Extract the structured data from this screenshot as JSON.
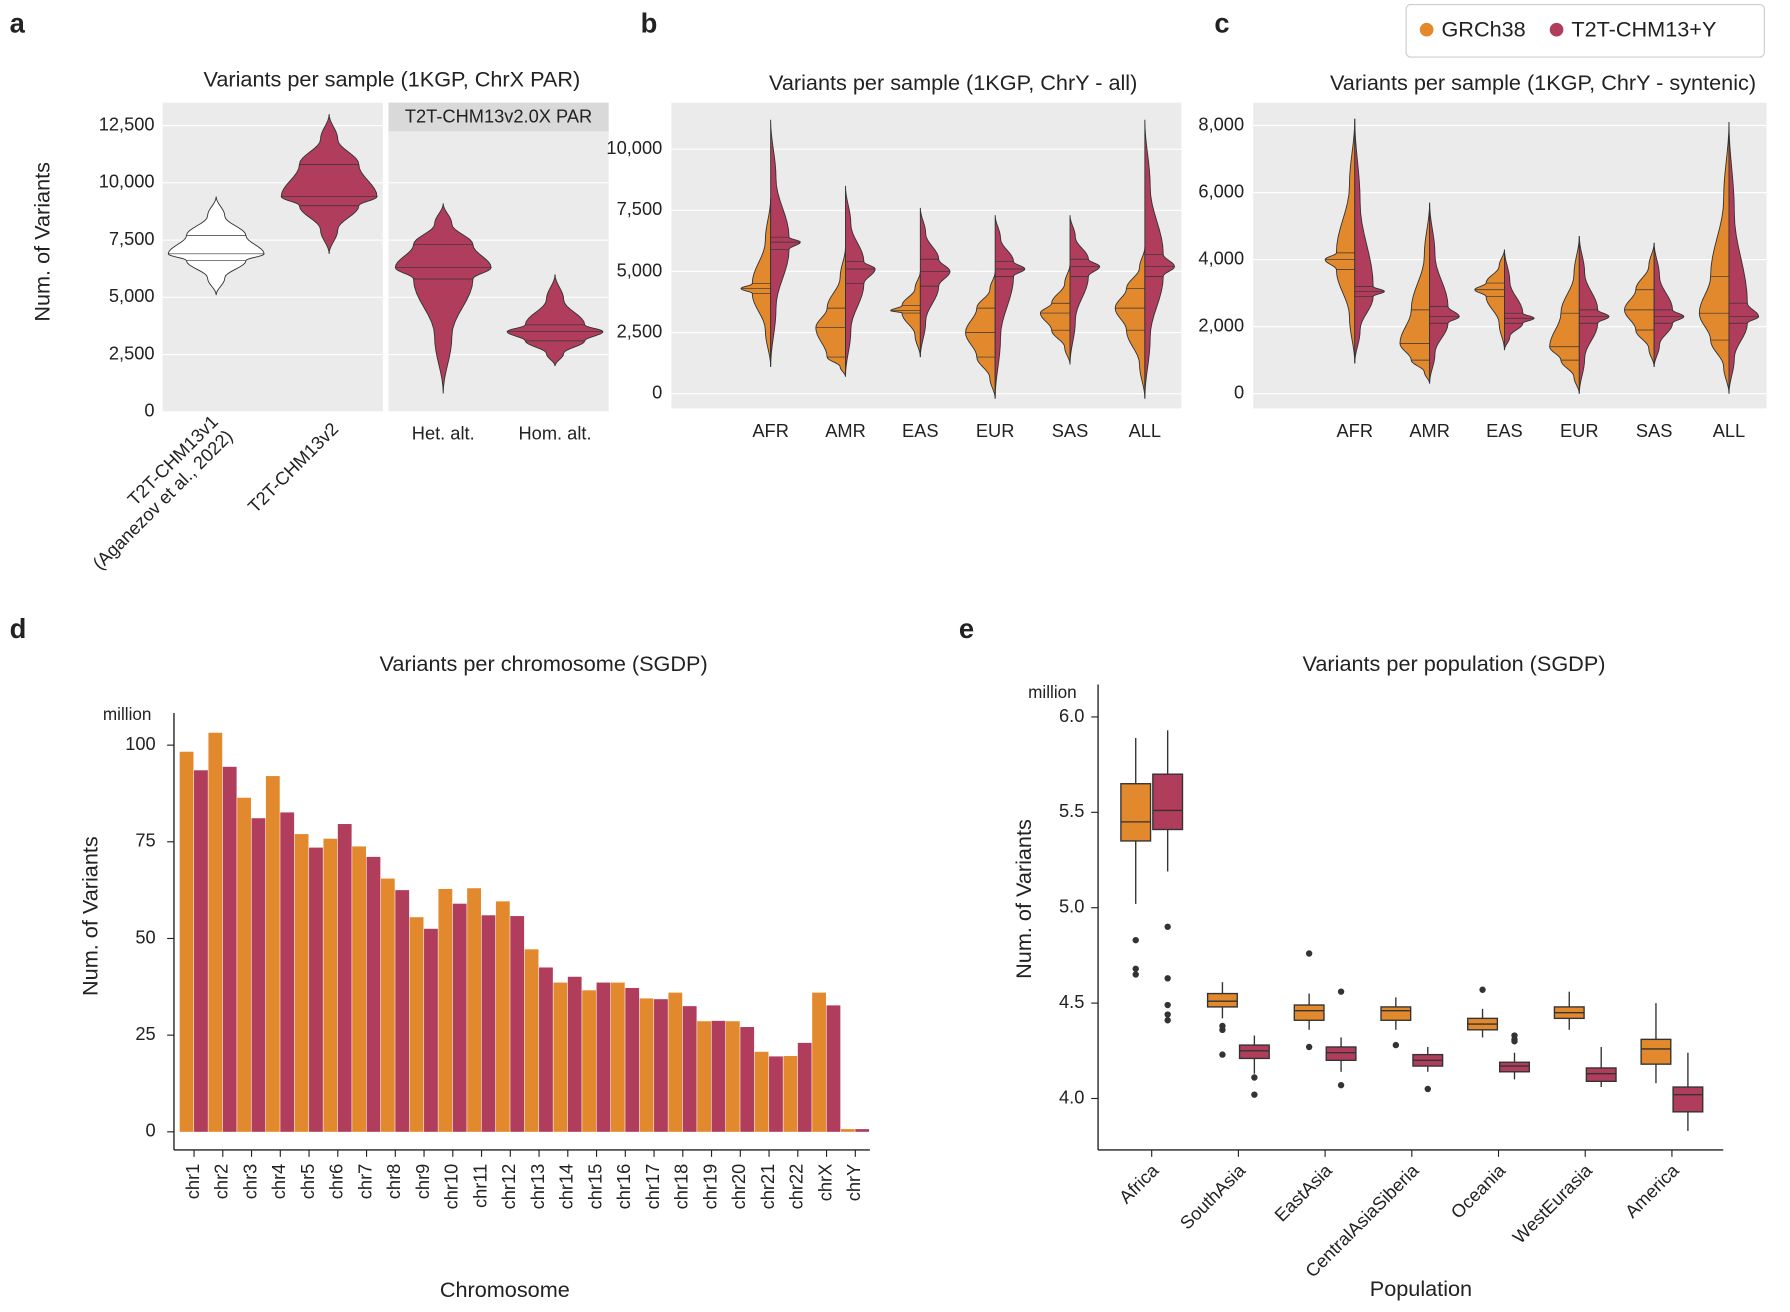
{
  "chart_data": [
    {
      "type": "violin",
      "panel_label": "a",
      "title": "Variants per sample (1KGP, ChrX PAR)",
      "y_label": "Num. of Variants",
      "strip_label": "T2T-CHM13v2.0X PAR",
      "categories": [
        [
          "T2T-CHM13v1",
          "(Aganezov et al., 2022)"
        ],
        "T2T-CHM13v2",
        "Het. alt.",
        "Hom. alt."
      ],
      "colors": [
        "#ffffff",
        "#b13d5c",
        "#b13d5c",
        "#b13d5c"
      ],
      "values": [
        [
          5100,
          6600,
          6900,
          7700,
          9400
        ],
        [
          6900,
          9000,
          9400,
          10800,
          13000
        ],
        [
          800,
          5800,
          6300,
          7300,
          9100
        ],
        [
          2000,
          3100,
          3500,
          3800,
          6000
        ]
      ],
      "ylim": [
        0,
        13500
      ],
      "yticks": [
        0,
        {
          "value": 2500,
          "label": "2,500"
        },
        {
          "value": 5000,
          "label": "5,000"
        },
        {
          "value": 7500,
          "label": "7,500"
        },
        {
          "value": 10000,
          "label": "10,000"
        },
        {
          "value": 12500,
          "label": "12,500"
        }
      ],
      "grid": true
    },
    {
      "type": "split_violin",
      "panel_label": "b",
      "title": "Variants per sample (1KGP, ChrY - all)",
      "categories": [
        "AFR",
        "AMR",
        "EAS",
        "EUR",
        "SAS",
        "ALL"
      ],
      "series": [
        {
          "name": "GRCh38",
          "color": "#e3892d",
          "values": [
            [
              1100,
              4100,
              4300,
              4500,
              8000
            ],
            [
              700,
              1500,
              2700,
              3500,
              6000
            ],
            [
              1500,
              3300,
              3400,
              3600,
              5000
            ],
            [
              -200,
              1500,
              2500,
              3500,
              5000
            ],
            [
              1200,
              2600,
              3300,
              3700,
              5300
            ],
            [
              -200,
              2600,
              3500,
              4300,
              6000
            ]
          ]
        },
        {
          "name": "T2T-CHM13+Y",
          "color": "#b13d5c",
          "values": [
            [
              1100,
              5900,
              6200,
              6400,
              11200
            ],
            [
              700,
              4500,
              5100,
              5400,
              8500
            ],
            [
              1500,
              4400,
              5000,
              5500,
              7600
            ],
            [
              -200,
              4800,
              5100,
              5400,
              7300
            ],
            [
              1200,
              4800,
              5200,
              5500,
              7300
            ],
            [
              -200,
              4800,
              5200,
              5700,
              11200
            ]
          ]
        }
      ],
      "ylim": [
        -600,
        11900
      ],
      "yticks": [
        0,
        {
          "value": 2500,
          "label": "2,500"
        },
        {
          "value": 5000,
          "label": "5,000"
        },
        {
          "value": 7500,
          "label": "7,500"
        },
        {
          "value": 10000,
          "label": "10,000"
        }
      ],
      "grid": true,
      "legend": "top-right"
    },
    {
      "type": "split_violin",
      "panel_label": "c",
      "title": "Variants per sample (1KGP, ChrY - syntenic)",
      "categories": [
        "AFR",
        "AMR",
        "EAS",
        "EUR",
        "SAS",
        "ALL"
      ],
      "series": [
        {
          "color": "#e3892d",
          "values": [
            [
              900,
              3700,
              4000,
              4200,
              8200
            ],
            [
              300,
              1000,
              1500,
              2500,
              5700
            ],
            [
              1300,
              2900,
              3100,
              3300,
              4300
            ],
            [
              0,
              1000,
              1400,
              2400,
              4700
            ],
            [
              800,
              1900,
              2500,
              3100,
              4500
            ],
            [
              0,
              1600,
              2400,
              3500,
              8100
            ]
          ]
        },
        {
          "color": "#b13d5c",
          "values": [
            [
              900,
              2900,
              3050,
              3200,
              8200
            ],
            [
              300,
              2100,
              2300,
              2600,
              5700
            ],
            [
              1300,
              2100,
              2250,
              2400,
              4300
            ],
            [
              0,
              2100,
              2300,
              2500,
              4700
            ],
            [
              800,
              2100,
              2300,
              2500,
              4500
            ],
            [
              0,
              2100,
              2300,
              2700,
              8100
            ]
          ]
        }
      ],
      "ylim": [
        -440,
        8680
      ],
      "yticks": [
        0,
        {
          "value": 2000,
          "label": "2,000"
        },
        {
          "value": 4000,
          "label": "4,000"
        },
        {
          "value": 6000,
          "label": "6,000"
        },
        {
          "value": 8000,
          "label": "8,000"
        }
      ],
      "grid": true
    },
    {
      "type": "bar",
      "panel_label": "d",
      "title": "Variants per chromosome (SGDP)",
      "unit_label": "million",
      "y_label": "Num. of Variants",
      "x_label": "Chromosome",
      "categories": [
        "chr1",
        "chr2",
        "chr3",
        "chr4",
        "chr5",
        "chr6",
        "chr7",
        "chr8",
        "chr9",
        "chr10",
        "chr11",
        "chr12",
        "chr13",
        "chr14",
        "chr15",
        "chr16",
        "chr17",
        "chr18",
        "chr19",
        "chr20",
        "chr21",
        "chr22",
        "chrX",
        "chrY"
      ],
      "series": [
        {
          "color": "#e3892d",
          "values": [
            98.3,
            103.2,
            86.4,
            92,
            77,
            75.8,
            73.8,
            65.5,
            55.5,
            62.8,
            63,
            59.6,
            47.2,
            38.6,
            36.6,
            38.6,
            34.5,
            36,
            28.6,
            28.6,
            20.7,
            19.6,
            36,
            0.7
          ]
        },
        {
          "color": "#b13d5c",
          "values": [
            93.5,
            94.4,
            81.1,
            82.6,
            73.5,
            79.6,
            71.1,
            62.5,
            52.5,
            59,
            56,
            55.8,
            42.5,
            40.1,
            38.6,
            37.2,
            34.3,
            32.5,
            28.7,
            27.1,
            19.5,
            23,
            32.7,
            0.7
          ]
        }
      ],
      "ylim": [
        -4.7,
        108.3
      ],
      "yticks": [
        0,
        25,
        50,
        75,
        100
      ]
    },
    {
      "type": "box",
      "panel_label": "e",
      "title": "Variants per population (SGDP)",
      "unit_label": "million",
      "y_label": "Num. of Variants",
      "x_label": "Population",
      "categories": [
        "Africa",
        "SouthAsia",
        "EastAsia",
        "CentralAsiaSiberia",
        "Oceania",
        "WestEurasia",
        "America"
      ],
      "series": [
        {
          "color": "#e3892d",
          "values": [
            [
              5.02,
              5.35,
              5.45,
              5.65,
              5.89
            ],
            [
              4.42,
              4.48,
              4.51,
              4.55,
              4.61
            ],
            [
              4.36,
              4.41,
              4.46,
              4.49,
              4.55
            ],
            [
              4.36,
              4.41,
              4.46,
              4.48,
              4.53
            ],
            [
              4.32,
              4.36,
              4.39,
              4.42,
              4.47
            ],
            [
              4.36,
              4.42,
              4.45,
              4.48,
              4.56
            ],
            [
              4.08,
              4.18,
              4.26,
              4.31,
              4.5
            ]
          ],
          "outliers": [
            [
              4.83,
              4.68,
              4.65
            ],
            [
              4.38,
              4.36,
              4.23
            ],
            [
              4.76,
              4.27
            ],
            [
              4.28
            ],
            [
              4.57
            ],
            [],
            []
          ]
        },
        {
          "color": "#b13d5c",
          "values": [
            [
              5.19,
              5.41,
              5.51,
              5.7,
              5.93
            ],
            [
              4.13,
              4.21,
              4.25,
              4.28,
              4.33
            ],
            [
              4.14,
              4.2,
              4.24,
              4.27,
              4.32
            ],
            [
              4.14,
              4.17,
              4.2,
              4.23,
              4.27
            ],
            [
              4.1,
              4.14,
              4.17,
              4.19,
              4.24
            ],
            [
              4.06,
              4.09,
              4.13,
              4.16,
              4.27
            ],
            [
              3.83,
              3.93,
              4.02,
              4.06,
              4.24
            ]
          ],
          "outliers": [
            [
              4.9,
              4.63,
              4.49,
              4.44,
              4.41
            ],
            [
              4.11,
              4.02
            ],
            [
              4.56,
              4.07
            ],
            [
              4.05
            ],
            [
              4.33,
              4.31,
              4.3
            ],
            [],
            []
          ]
        }
      ],
      "ylim": [
        3.73,
        6.17
      ],
      "yticks": [
        {
          "value": 4,
          "label": "4.0"
        },
        4.5,
        {
          "value": 5,
          "label": "5.0"
        },
        5.5,
        {
          "value": 6,
          "label": "6.0"
        }
      ]
    }
  ]
}
